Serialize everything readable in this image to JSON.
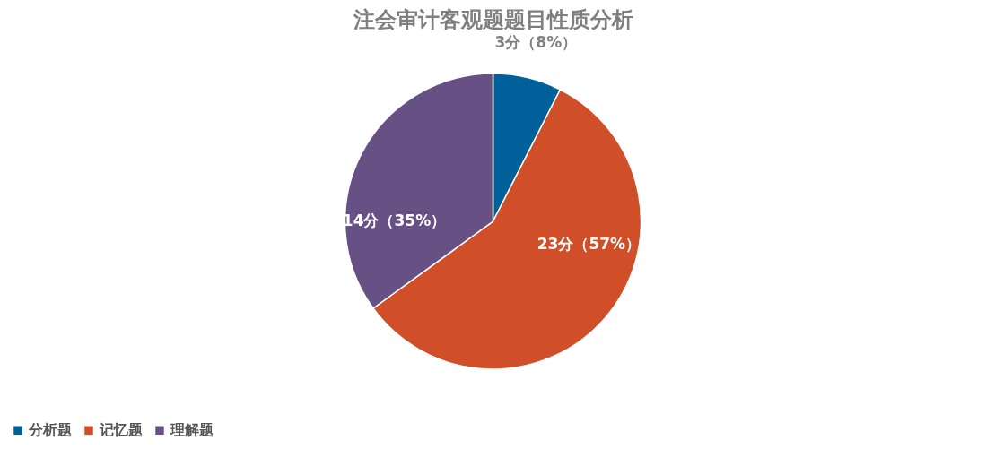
{
  "chart_data": {
    "type": "pie",
    "title": "注会审计客观题题目性质分析",
    "categories": [
      "分析题",
      "记忆题",
      "理解题"
    ],
    "values": [
      3,
      23,
      14
    ],
    "colors": [
      "#00609a",
      "#d04e28",
      "#675184"
    ],
    "value_labels": [
      "3分（8%）",
      "23分（57%）",
      "14分（35%）"
    ],
    "legend": "bottom"
  }
}
